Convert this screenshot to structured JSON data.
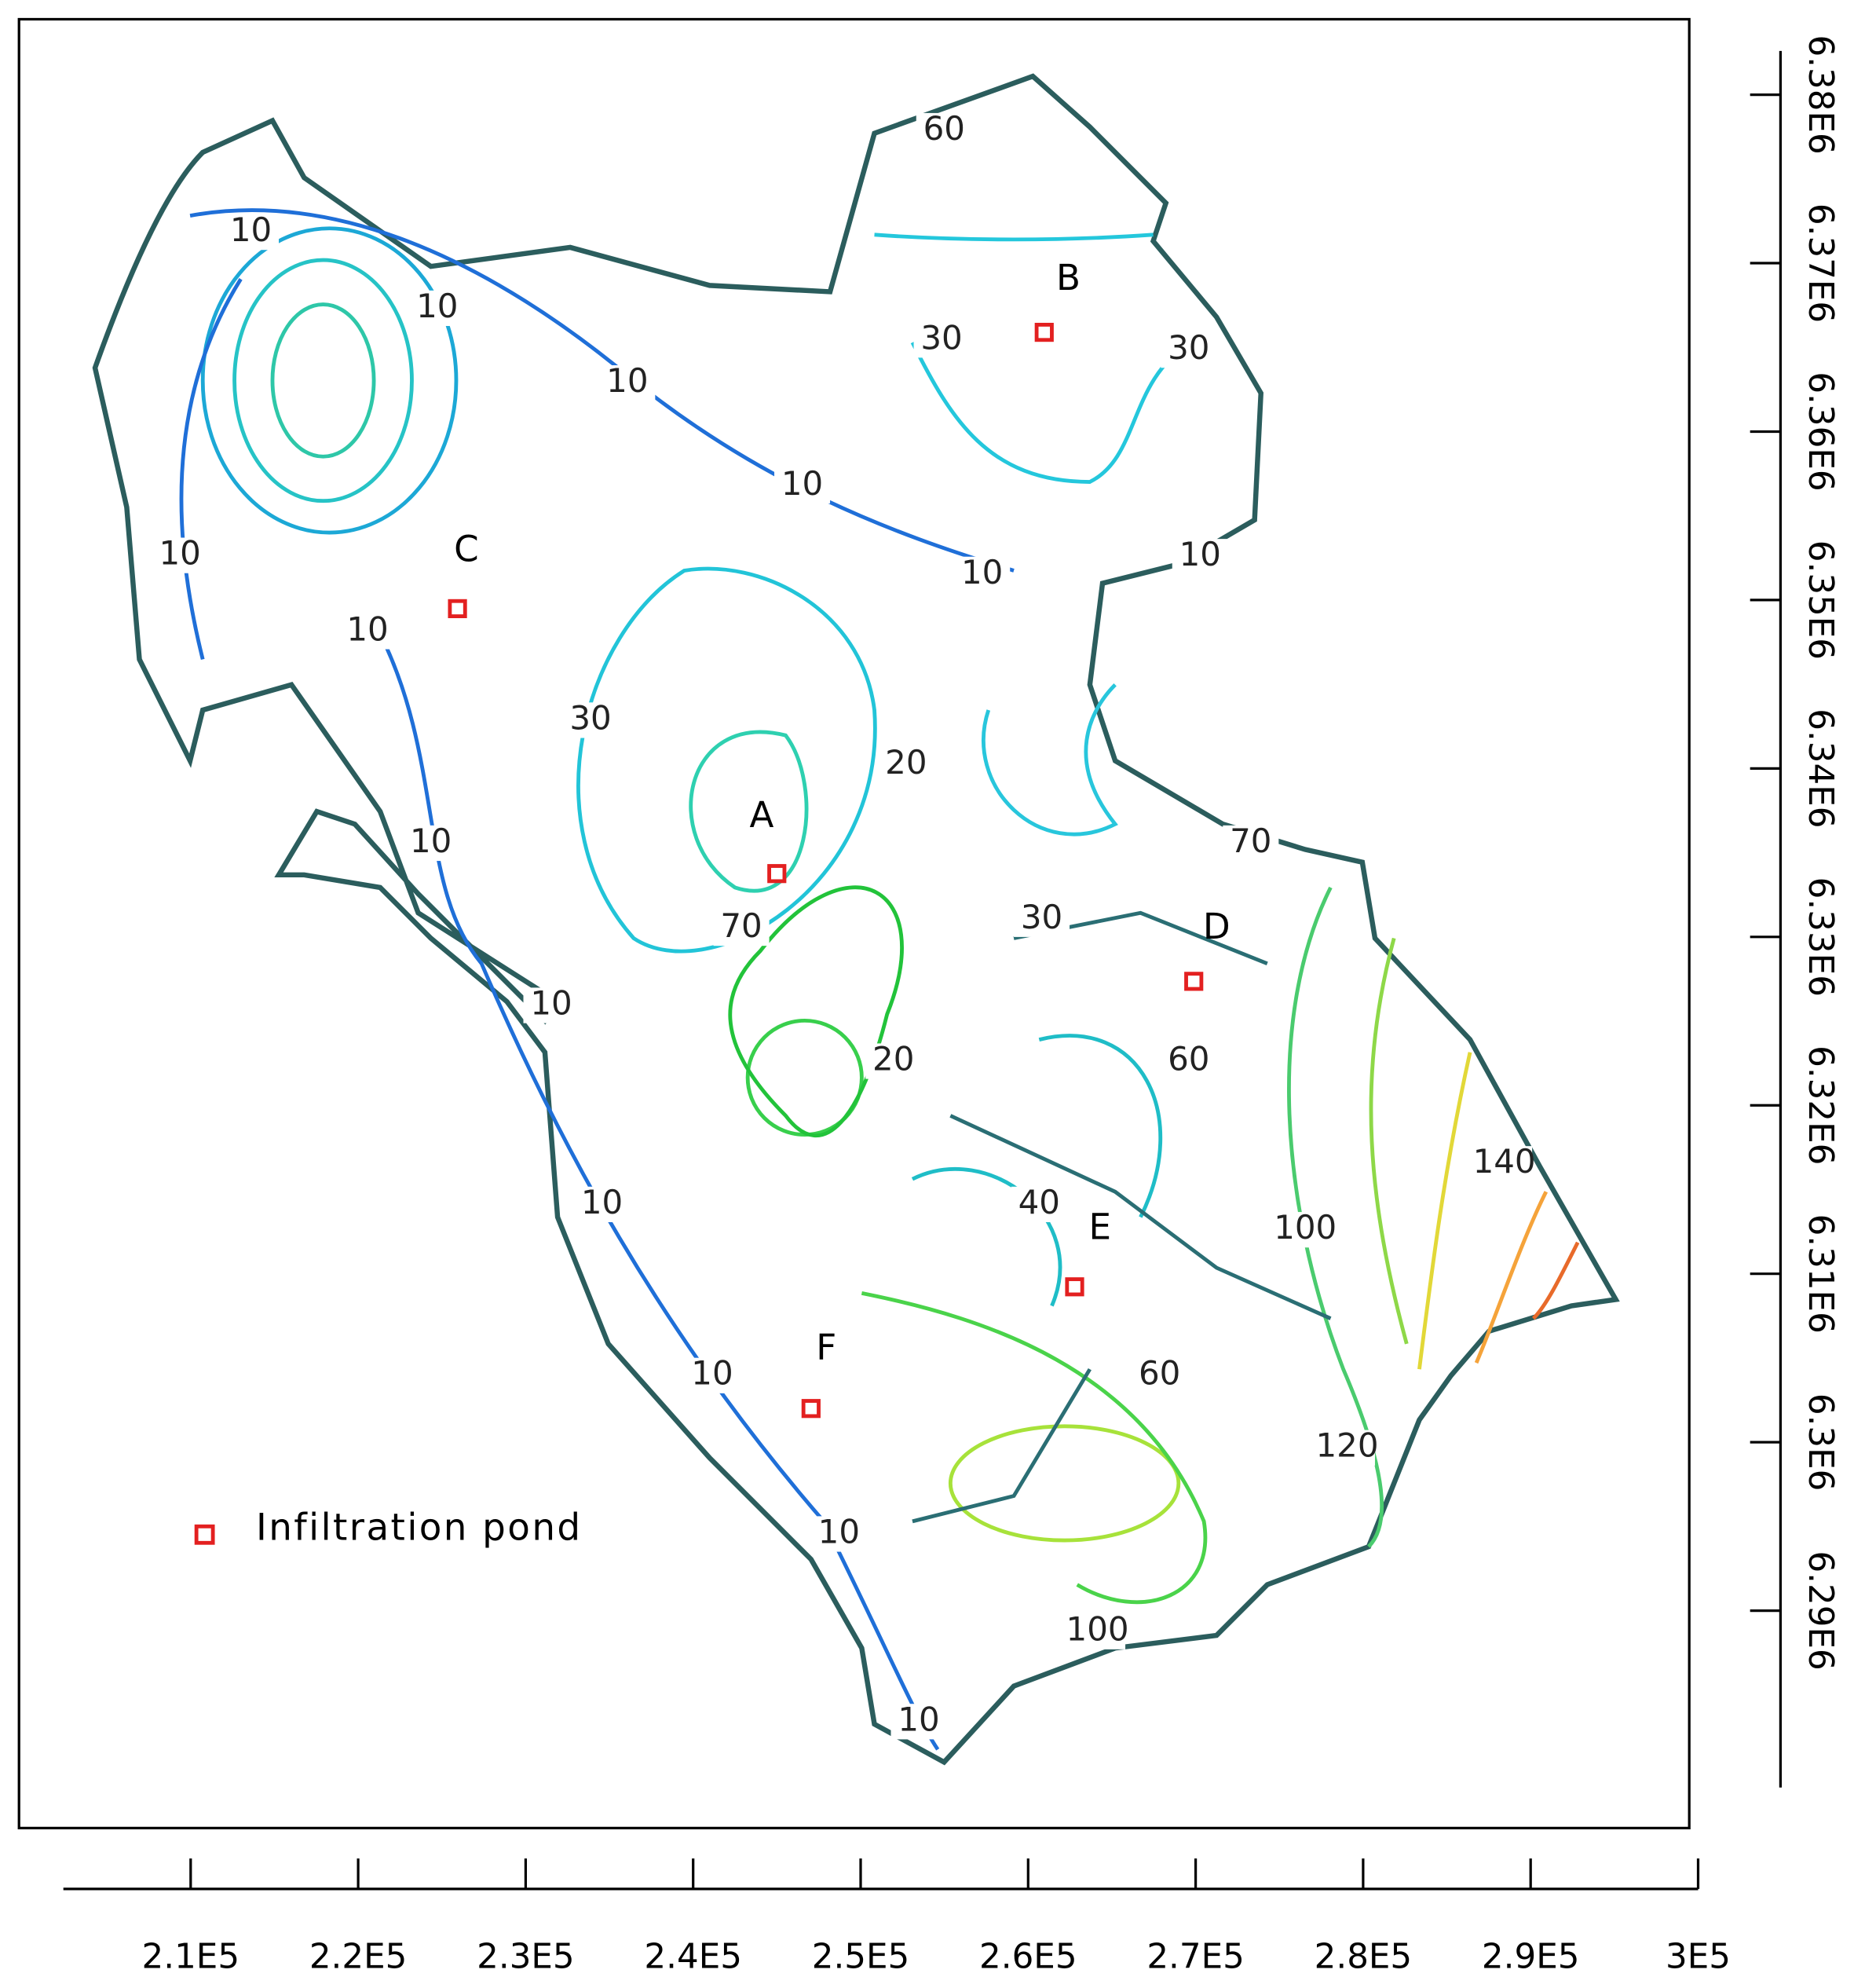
{
  "map": {
    "x_axis": {
      "lim": [
        202400,
        300000
      ],
      "ticks": [
        {
          "value": 210000,
          "label": "2.1E5"
        },
        {
          "value": 220000,
          "label": "2.2E5"
        },
        {
          "value": 230000,
          "label": "2.3E5"
        },
        {
          "value": 240000,
          "label": "2.4E5"
        },
        {
          "value": 250000,
          "label": "2.5E5"
        },
        {
          "value": 260000,
          "label": "2.6E5"
        },
        {
          "value": 270000,
          "label": "2.7E5"
        },
        {
          "value": 280000,
          "label": "2.8E5"
        },
        {
          "value": 290000,
          "label": "2.9E5"
        },
        {
          "value": 300000,
          "label": "3E5"
        }
      ]
    },
    "y_axis": {
      "lim": [
        6279500,
        6382600
      ],
      "ticks": [
        {
          "value": 6290000,
          "label": "6.29E6"
        },
        {
          "value": 6300000,
          "label": "6.3E6"
        },
        {
          "value": 6310000,
          "label": "6.31E6"
        },
        {
          "value": 6320000,
          "label": "6.32E6"
        },
        {
          "value": 6330000,
          "label": "6.33E6"
        },
        {
          "value": 6340000,
          "label": "6.34E6"
        },
        {
          "value": 6350000,
          "label": "6.35E6"
        },
        {
          "value": 6360000,
          "label": "6.36E6"
        },
        {
          "value": 6370000,
          "label": "6.37E6"
        },
        {
          "value": 6380000,
          "label": "6.38E6"
        }
      ]
    },
    "contour_labels": [
      "60",
      "10",
      "10",
      "10",
      "30",
      "30",
      "10",
      "10",
      "10",
      "10",
      "10",
      "30",
      "20",
      "10",
      "70",
      "30",
      "70",
      "10",
      "20",
      "60",
      "140",
      "10",
      "40",
      "100",
      "10",
      "60",
      "120",
      "10",
      "100",
      "10"
    ],
    "sites": [
      "A",
      "B",
      "C",
      "D",
      "E",
      "F"
    ],
    "legend": "Infiltration pond"
  }
}
